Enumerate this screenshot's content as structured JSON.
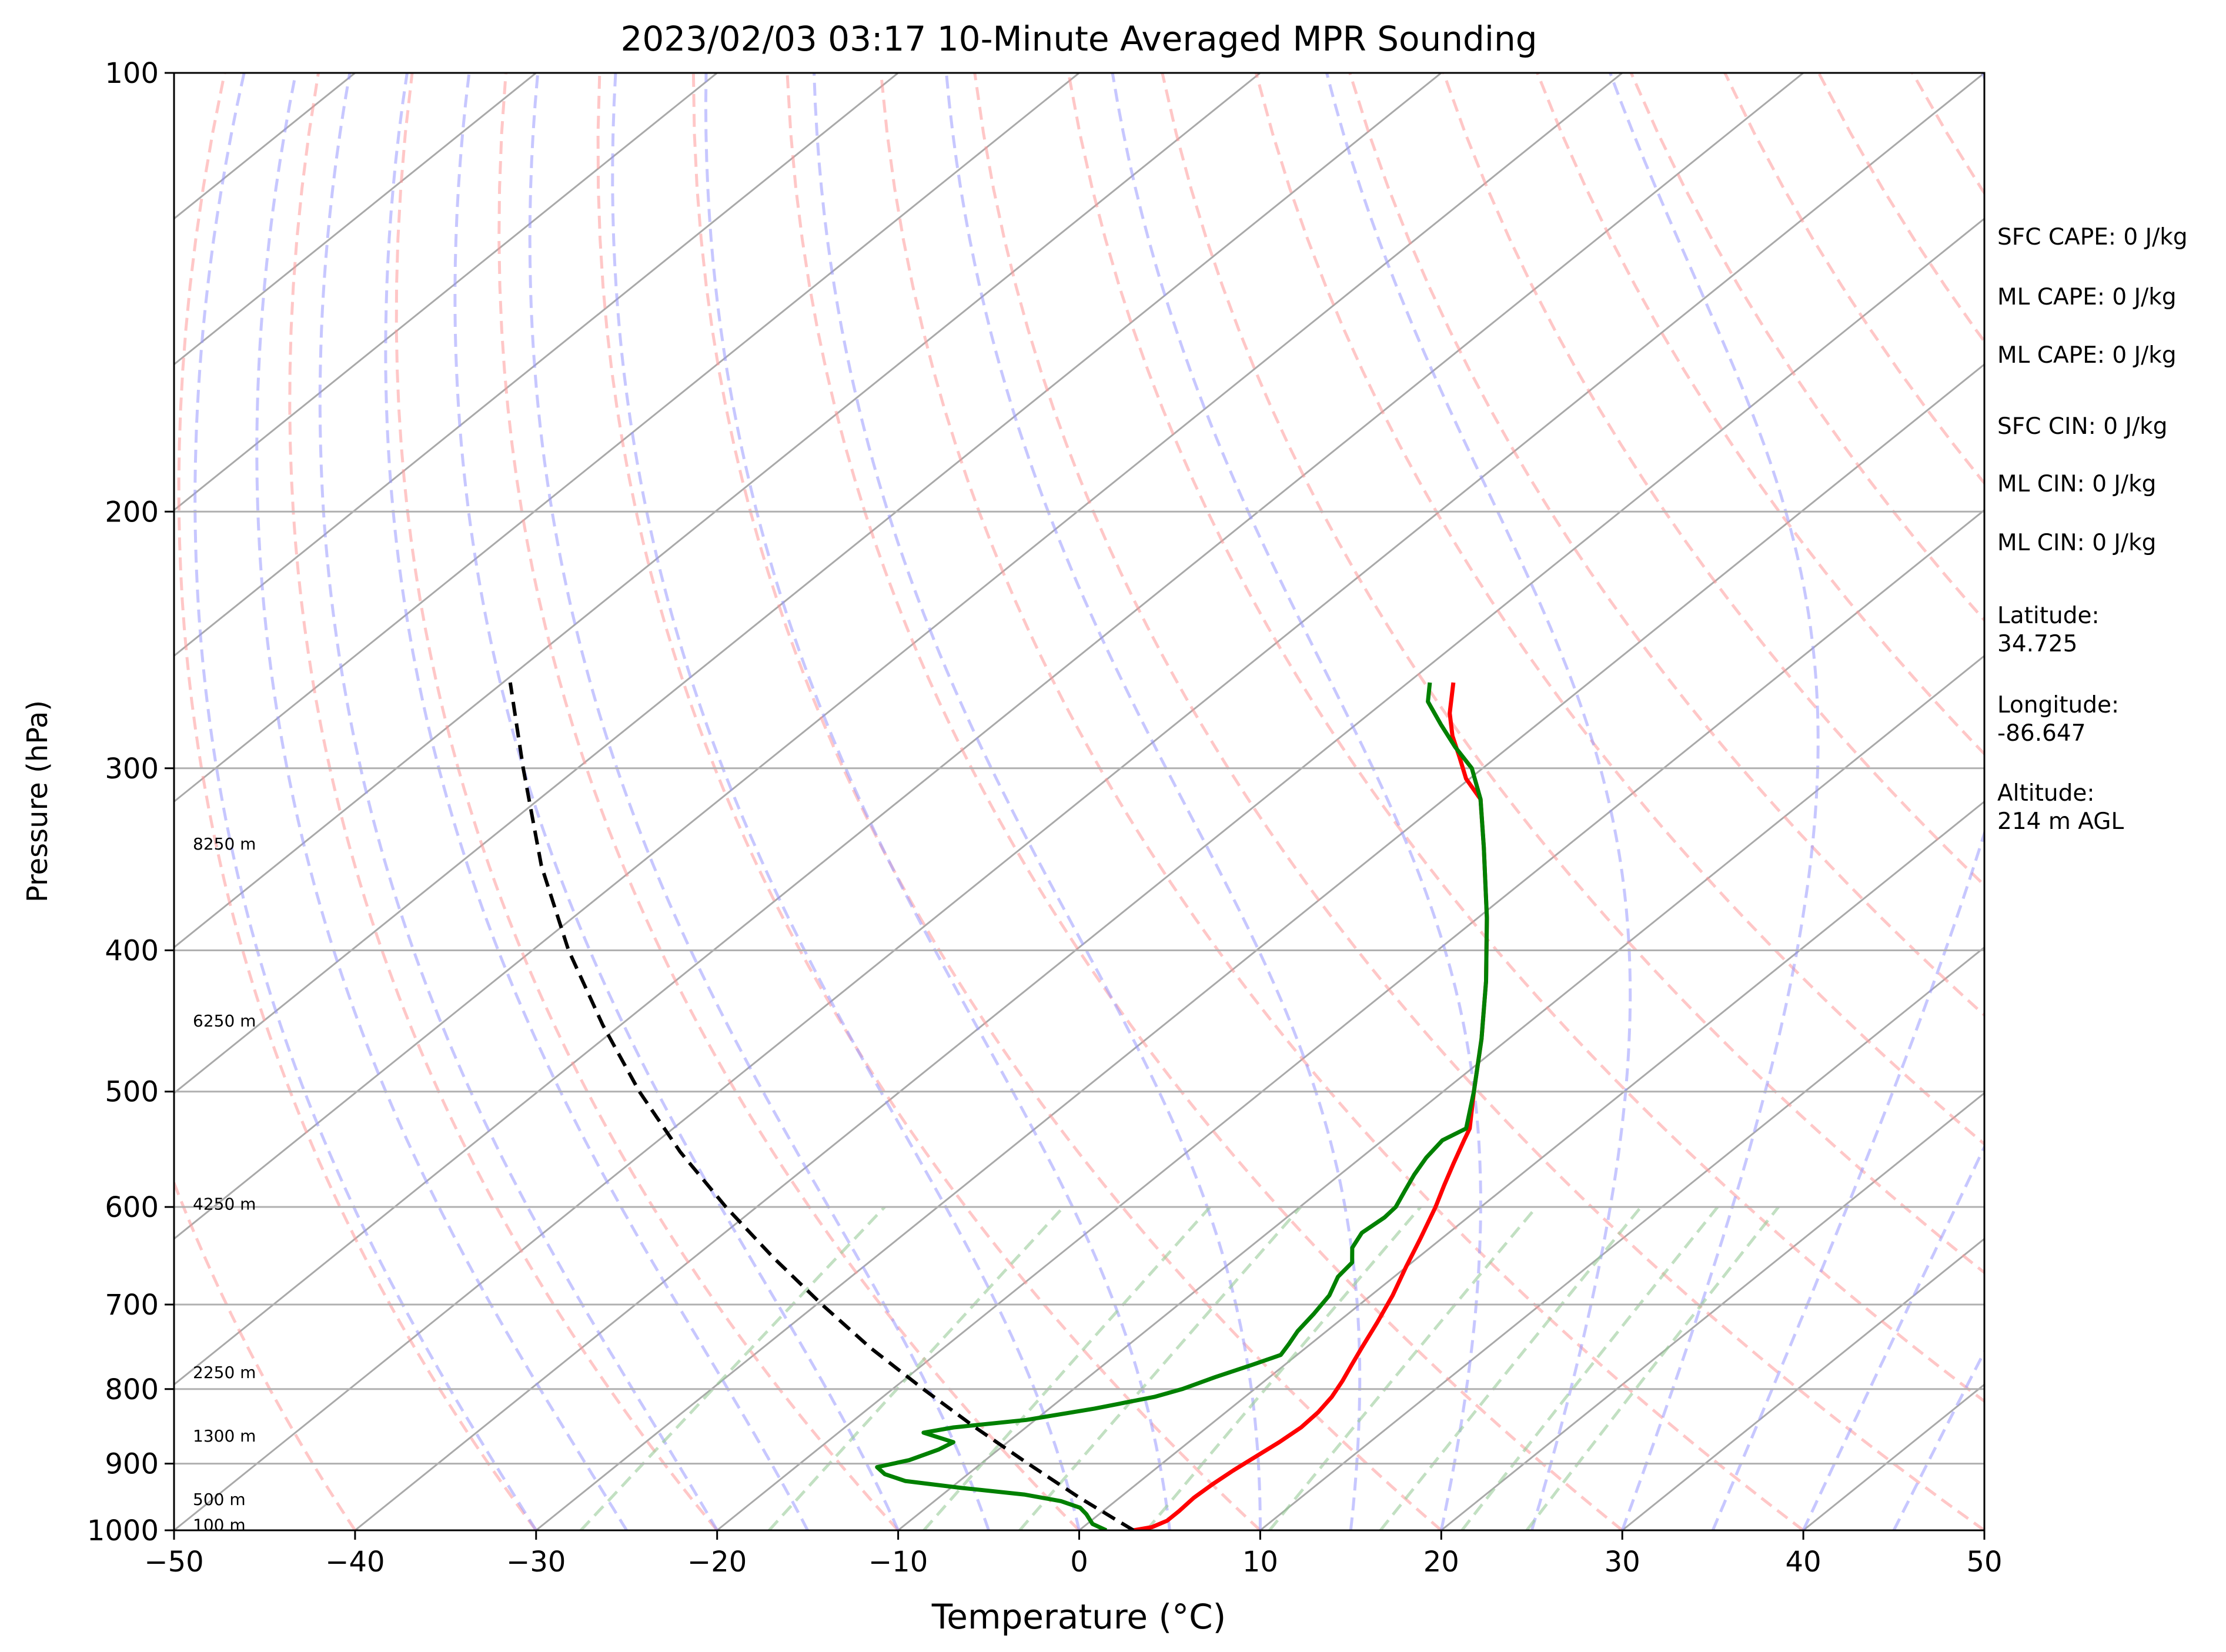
{
  "chart_data": {
    "type": "line",
    "title": "2023/02/03 03:17 10-Minute Averaged MPR Sounding",
    "xlabel": "Temperature (°C)",
    "ylabel": "Pressure (hPa)",
    "xlim": [
      -50,
      50
    ],
    "ylim": [
      1000,
      100
    ],
    "y_scale": "log",
    "skew": true,
    "grid": true,
    "x_ticks": [
      -50,
      -40,
      -30,
      -20,
      -10,
      0,
      10,
      20,
      30,
      40,
      50
    ],
    "x_tick_labels": [
      "−50",
      "−40",
      "−30",
      "−20",
      "−10",
      "0",
      "10",
      "20",
      "30",
      "40",
      "50"
    ],
    "y_ticks": [
      1000,
      900,
      800,
      700,
      600,
      500,
      400,
      300,
      200,
      100
    ],
    "y_tick_labels": [
      "1000",
      "900",
      "800",
      "700",
      "600",
      "500",
      "400",
      "300",
      "200",
      "100"
    ],
    "height_labels": [
      {
        "p": 991,
        "text": "100 m"
      },
      {
        "p": 952,
        "text": "500 m"
      },
      {
        "p": 861,
        "text": "1300 m"
      },
      {
        "p": 779,
        "text": "2250 m"
      },
      {
        "p": 597,
        "text": "4250 m"
      },
      {
        "p": 447,
        "text": "6250 m"
      },
      {
        "p": 338,
        "text": "8250 m"
      }
    ],
    "series": [
      {
        "color": "#ff0000",
        "points": [
          [
            1000,
            3.0
          ],
          [
            995,
            3.8
          ],
          [
            985,
            4.2
          ],
          [
            970,
            4.2
          ],
          [
            950,
            4.1
          ],
          [
            930,
            4.2
          ],
          [
            910,
            4.4
          ],
          [
            890,
            4.7
          ],
          [
            870,
            5.0
          ],
          [
            850,
            5.2
          ],
          [
            830,
            5.1
          ],
          [
            810,
            4.8
          ],
          [
            790,
            4.3
          ],
          [
            770,
            3.7
          ],
          [
            750,
            3.1
          ],
          [
            720,
            2.2
          ],
          [
            690,
            1.2
          ],
          [
            660,
            0.0
          ],
          [
            630,
            -1.2
          ],
          [
            600,
            -2.5
          ],
          [
            580,
            -3.5
          ],
          [
            560,
            -4.5
          ],
          [
            540,
            -5.5
          ],
          [
            530,
            -6.0
          ],
          [
            500,
            -8.3
          ],
          [
            460,
            -11.5
          ],
          [
            420,
            -15.2
          ],
          [
            380,
            -19.5
          ],
          [
            340,
            -24.5
          ],
          [
            315,
            -28.0
          ],
          [
            305,
            -30.2
          ],
          [
            295,
            -32.0
          ],
          [
            285,
            -33.9
          ],
          [
            275,
            -35.6
          ],
          [
            262,
            -37.5
          ]
        ]
      },
      {
        "color": "#008000",
        "points": [
          [
            1000,
            1.5
          ],
          [
            990,
            0.3
          ],
          [
            975,
            -0.7
          ],
          [
            965,
            -1.5
          ],
          [
            955,
            -3.0
          ],
          [
            945,
            -5.5
          ],
          [
            935,
            -9.5
          ],
          [
            925,
            -13.0
          ],
          [
            915,
            -14.6
          ],
          [
            905,
            -15.5
          ],
          [
            895,
            -14.2
          ],
          [
            880,
            -13.3
          ],
          [
            870,
            -13.0
          ],
          [
            857,
            -15.3
          ],
          [
            850,
            -14.0
          ],
          [
            840,
            -10.5
          ],
          [
            825,
            -7.5
          ],
          [
            810,
            -5.0
          ],
          [
            800,
            -4.0
          ],
          [
            785,
            -3.0
          ],
          [
            770,
            -1.8
          ],
          [
            758,
            -0.9
          ],
          [
            745,
            -1.2
          ],
          [
            730,
            -1.6
          ],
          [
            710,
            -1.9
          ],
          [
            690,
            -2.3
          ],
          [
            670,
            -3.1
          ],
          [
            655,
            -3.3
          ],
          [
            640,
            -4.3
          ],
          [
            625,
            -4.8
          ],
          [
            610,
            -4.6
          ],
          [
            600,
            -4.7
          ],
          [
            585,
            -5.3
          ],
          [
            570,
            -5.9
          ],
          [
            555,
            -6.4
          ],
          [
            540,
            -6.7
          ],
          [
            530,
            -6.2
          ],
          [
            500,
            -8.3
          ],
          [
            460,
            -11.5
          ],
          [
            420,
            -15.2
          ],
          [
            380,
            -19.5
          ],
          [
            340,
            -24.5
          ],
          [
            315,
            -28.0
          ],
          [
            300,
            -30.6
          ],
          [
            290,
            -33.0
          ],
          [
            280,
            -35.3
          ],
          [
            270,
            -37.6
          ],
          [
            262,
            -38.8
          ]
        ]
      },
      {
        "color": "#000000",
        "dashed": true,
        "points": [
          [
            1000,
            3.0
          ],
          [
            950,
            -2.2
          ],
          [
            900,
            -7.4
          ],
          [
            850,
            -12.8
          ],
          [
            800,
            -18.3
          ],
          [
            750,
            -24.0
          ],
          [
            700,
            -29.7
          ],
          [
            650,
            -35.6
          ],
          [
            600,
            -41.7
          ],
          [
            550,
            -48.0
          ],
          [
            500,
            -54.4
          ],
          [
            450,
            -61.0
          ],
          [
            400,
            -68.0
          ],
          [
            350,
            -75.3
          ],
          [
            300,
            -83.0
          ],
          [
            262,
            -89.6
          ]
        ]
      }
    ],
    "annotations": [
      "SFC CAPE: 0 J/kg",
      "ML CAPE: 0 J/kg",
      "ML CAPE: 0 J/kg",
      "SFC CIN: 0 J/kg",
      "ML CIN: 0 J/kg",
      "ML CIN: 0 J/kg",
      "Latitude:",
      "34.725",
      "Longitude:",
      "-86.647",
      "Altitude:",
      "214 m AGL"
    ]
  }
}
